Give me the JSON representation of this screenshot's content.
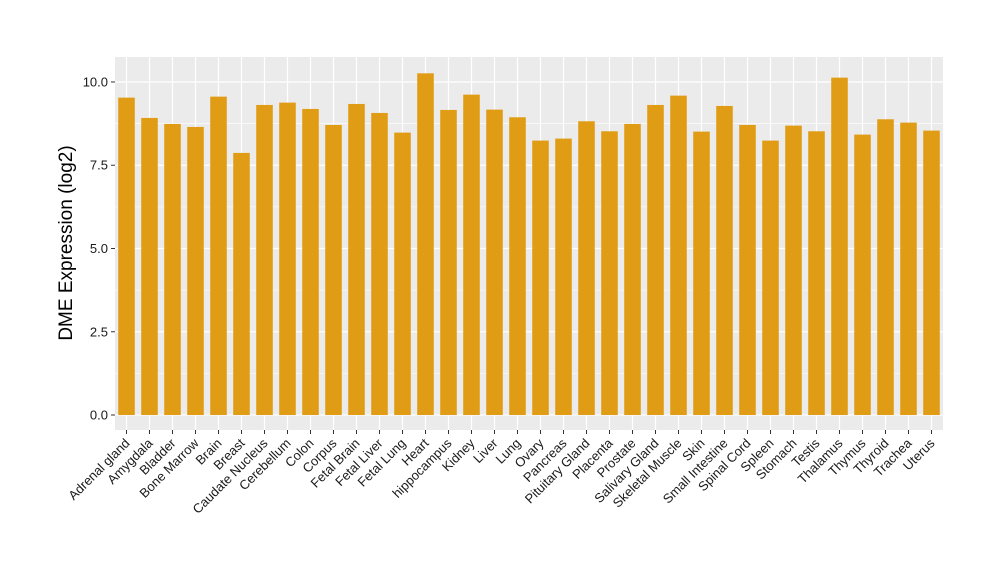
{
  "chart_data": {
    "type": "bar",
    "ylabel": "DME Expression (log2)",
    "xlabel": "",
    "ylim": [
      -0.45,
      10.75
    ],
    "yticks": [
      0.0,
      2.5,
      5.0,
      7.5,
      10.0
    ],
    "ytick_labels": [
      "0.0",
      "2.5",
      "5.0",
      "7.5",
      "10.0"
    ],
    "grid": true,
    "categories": [
      "Adrenal gland",
      "Amygdala",
      "Bladder",
      "Bone Marrow",
      "Brain",
      "Breast",
      "Caudate Nucleus",
      "Cerebellum",
      "Colon",
      "Corpus",
      "Fetal Brain",
      "Fetal Liver",
      "Fetal Lung",
      "Heart",
      "hippocampus",
      "Kidney",
      "Liver",
      "Lung",
      "Ovary",
      "Pancreas",
      "Pituitary Gland",
      "Placenta",
      "Prostate",
      "Salivary Gland",
      "Skeletal Muscle",
      "Skin",
      "Small Intestine",
      "Spinal Cord",
      "Spleen",
      "Stomach",
      "Testis",
      "Thalamus",
      "Thymus",
      "Thyroid",
      "Trachea",
      "Uterus"
    ],
    "values": [
      9.53,
      8.92,
      8.74,
      8.65,
      9.56,
      7.87,
      9.31,
      9.38,
      9.19,
      8.71,
      9.34,
      9.07,
      8.48,
      10.26,
      9.16,
      9.62,
      9.17,
      8.94,
      8.24,
      8.3,
      8.82,
      8.52,
      8.74,
      9.31,
      9.59,
      8.51,
      9.28,
      8.71,
      8.24,
      8.69,
      8.52,
      10.13,
      8.42,
      8.88,
      8.78,
      8.54
    ],
    "colors": {
      "bar": "#e09c14",
      "panel": "#ebebeb",
      "grid": "#ffffff",
      "tick": "#333333"
    }
  }
}
